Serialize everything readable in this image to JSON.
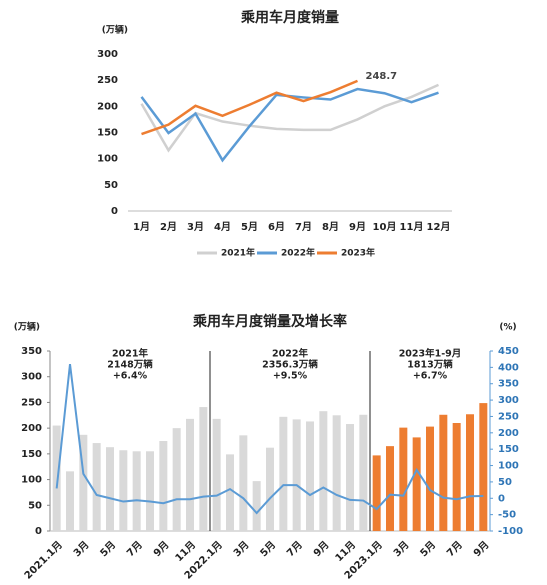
{
  "chart_data": [
    {
      "type": "line",
      "title": "乘用车月度销量",
      "y_unit": "(万辆)",
      "categories": [
        "1月",
        "2月",
        "3月",
        "4月",
        "5月",
        "6月",
        "7月",
        "8月",
        "9月",
        "10月",
        "11月",
        "12月"
      ],
      "ylim": [
        0,
        300
      ],
      "yticks": [
        0,
        50,
        100,
        150,
        200,
        250,
        300
      ],
      "legend": "bottom",
      "series": [
        {
          "name": "2021年",
          "color": "#d0d0d0",
          "values": [
            205,
            116,
            187,
            171,
            163,
            157,
            155,
            155,
            175,
            200,
            218,
            241
          ]
        },
        {
          "name": "2022年",
          "color": "#5b9bd5",
          "values": [
            218,
            149,
            186,
            97,
            162,
            222,
            217,
            213,
            233,
            225,
            208,
            226
          ]
        },
        {
          "name": "2023年",
          "color": "#ed7d31",
          "values": [
            147,
            165,
            201,
            182,
            203,
            226,
            210,
            227,
            248.7,
            null,
            null,
            null
          ],
          "value_labels": [
            null,
            null,
            null,
            null,
            null,
            null,
            null,
            null,
            "248.7",
            null,
            null,
            null
          ]
        }
      ]
    },
    {
      "type": "bar_line",
      "title": "乘用车月度销量及增长率",
      "y_unit": "(万辆)",
      "y2_unit": "(%)",
      "categories": [
        "2021.1月",
        null,
        "3月",
        null,
        "5月",
        null,
        "7月",
        null,
        "9月",
        null,
        "11月",
        null,
        "2022.1月",
        null,
        "3月",
        null,
        "5月",
        null,
        "7月",
        null,
        "9月",
        null,
        "11月",
        null,
        "2023.1月",
        null,
        "3月",
        null,
        "5月",
        null,
        "7月",
        null,
        "9月"
      ],
      "ylim": [
        0,
        350
      ],
      "yticks": [
        0,
        50,
        100,
        150,
        200,
        250,
        300,
        350
      ],
      "y2lim": [
        -100,
        450
      ],
      "y2ticks": [
        -100,
        -50,
        0,
        50,
        100,
        150,
        200,
        250,
        300,
        350,
        400,
        450
      ],
      "annotations": [
        [
          "2021年",
          "2148万辆",
          "+6.4%"
        ],
        [
          "2022年",
          "2356.3万辆",
          "+9.5%"
        ],
        [
          "2023年1-9月",
          "1813万辆",
          "+6.7%"
        ]
      ],
      "series": [
        {
          "kind": "bar",
          "color": "#d9d9d9",
          "values": [
            205,
            116,
            187,
            171,
            163,
            157,
            155,
            155,
            175,
            200,
            218,
            241,
            218,
            149,
            186,
            97,
            162,
            222,
            217,
            213,
            233,
            225,
            208,
            226,
            null,
            null,
            null,
            null,
            null,
            null,
            null,
            null,
            null
          ]
        },
        {
          "kind": "bar",
          "color": "#ed7d31",
          "values": [
            null,
            null,
            null,
            null,
            null,
            null,
            null,
            null,
            null,
            null,
            null,
            null,
            null,
            null,
            null,
            null,
            null,
            null,
            null,
            null,
            null,
            null,
            null,
            null,
            147,
            165,
            201,
            182,
            203,
            226,
            210,
            227,
            248.7
          ]
        },
        {
          "kind": "line",
          "axis": "y2",
          "color": "#5b9bd5",
          "values": [
            30,
            410,
            75,
            10,
            0,
            -10,
            -6,
            -10,
            -15,
            -3,
            -3,
            5,
            8,
            28,
            0,
            -45,
            0,
            40,
            40,
            10,
            33,
            10,
            -5,
            -7,
            -33,
            11,
            8,
            87,
            25,
            2,
            -3,
            6,
            7
          ]
        }
      ]
    }
  ]
}
